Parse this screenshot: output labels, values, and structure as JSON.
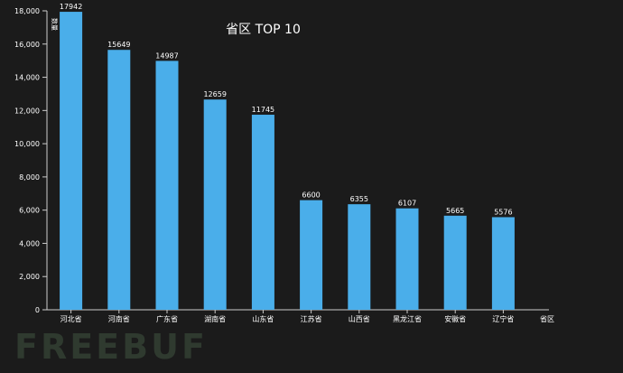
{
  "chart_data": {
    "type": "bar",
    "title": "省区 TOP 10",
    "xlabel": "省区",
    "ylabel": "数量",
    "categories": [
      "河北省",
      "河南省",
      "广东省",
      "湖南省",
      "山东省",
      "江苏省",
      "山西省",
      "黑龙江省",
      "安徽省",
      "辽宁省"
    ],
    "values": [
      17942,
      15649,
      14987,
      12659,
      11745,
      6600,
      6355,
      6107,
      5665,
      5576
    ],
    "ylim": [
      0,
      18000
    ],
    "yticks": [
      "0",
      "2,000",
      "4,000",
      "6,000",
      "8,000",
      "10,000",
      "12,000",
      "14,000",
      "16,000",
      "18,000"
    ],
    "grid": false,
    "bar_color": "#4aaeea",
    "axis_color": "#cccccc"
  },
  "watermark": "FREEBUF"
}
